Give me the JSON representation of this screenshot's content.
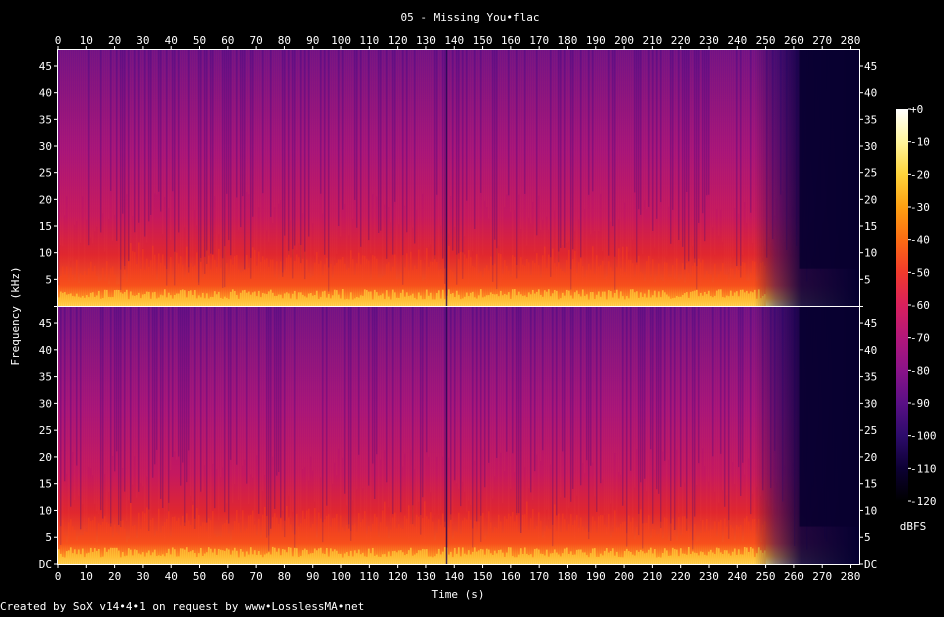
{
  "chart_data": {
    "type": "heatmap",
    "title": "05 - Missing You•flac",
    "xlabel": "Time (s)",
    "ylabel": "Frequency (kHz)",
    "xlim": [
      0,
      283
    ],
    "ylim": [
      0,
      48
    ],
    "x_ticks": [
      "0",
      "10",
      "20",
      "30",
      "40",
      "50",
      "60",
      "70",
      "80",
      "90",
      "100",
      "110",
      "120",
      "130",
      "140",
      "150",
      "160",
      "170",
      "180",
      "190",
      "200",
      "210",
      "220",
      "230",
      "240",
      "250",
      "260",
      "270",
      "280"
    ],
    "y_ticks_left": [
      "DC",
      "5",
      "10",
      "15",
      "20",
      "25",
      "30",
      "35",
      "40",
      "45"
    ],
    "y_ticks_right": [
      "DC",
      "5",
      "10",
      "15",
      "20",
      "25",
      "30",
      "35",
      "40",
      "45"
    ],
    "channels": 2,
    "colorbar": {
      "label": "dBFS",
      "ticks": [
        "+0",
        "-10",
        "-20",
        "-30",
        "-40",
        "-50",
        "-60",
        "-70",
        "-80",
        "-90",
        "-100",
        "-110",
        "-120"
      ],
      "range": [
        -120,
        0
      ],
      "colors": [
        "#000000",
        "#0c0033",
        "#2d0b6b",
        "#5a0f86",
        "#8a1389",
        "#b3177a",
        "#d9205c",
        "#f13a2c",
        "#fb6c13",
        "#fda012",
        "#fed43b",
        "#fff59c",
        "#ffffff"
      ]
    }
  },
  "footer": {
    "credit": "Created by SoX v14•4•1 on request by www•LosslessMA•net"
  }
}
